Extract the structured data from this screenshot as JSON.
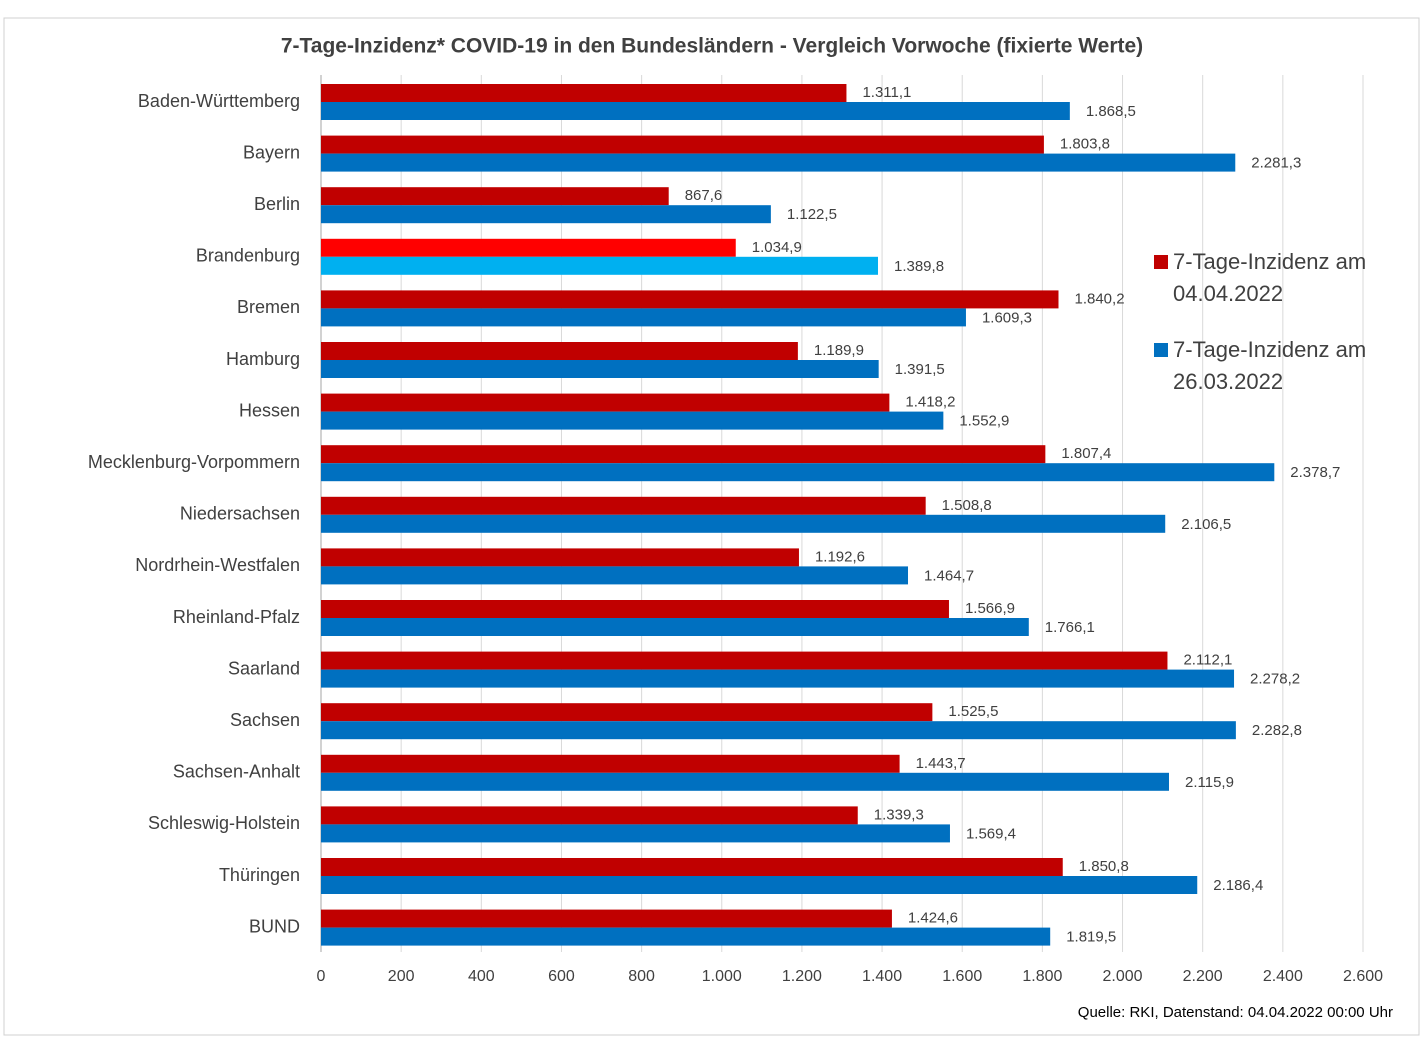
{
  "chart_data": {
    "type": "hbar",
    "title": "7-Tage-Inzidenz* COVID-19 in den Bundesländern - Vergleich Vorwoche (fixierte Werte)",
    "source": "Quelle: RKI, Datenstand: 04.04.2022 00:00 Uhr",
    "categories": [
      "Baden-Württemberg",
      "Bayern",
      "Berlin",
      "Brandenburg",
      "Bremen",
      "Hamburg",
      "Hessen",
      "Mecklenburg-Vorpommern",
      "Niedersachsen",
      "Nordrhein-Westfalen",
      "Rheinland-Pfalz",
      "Saarland",
      "Sachsen",
      "Sachsen-Anhalt",
      "Schleswig-Holstein",
      "Thüringen",
      "BUND"
    ],
    "series": [
      {
        "name": "7-Tage-Inzidenz am 04.04.2022",
        "color": "#c00000",
        "colors": [
          "#c00000",
          "#c00000",
          "#c00000",
          "#ff0000",
          "#c00000",
          "#c00000",
          "#c00000",
          "#c00000",
          "#c00000",
          "#c00000",
          "#c00000",
          "#c00000",
          "#c00000",
          "#c00000",
          "#c00000",
          "#c00000",
          "#c00000"
        ],
        "values": [
          1311.1,
          1803.8,
          867.6,
          1034.9,
          1840.2,
          1189.9,
          1418.2,
          1807.4,
          1508.8,
          1192.6,
          1566.9,
          2112.1,
          1525.5,
          1443.7,
          1339.3,
          1850.8,
          1424.6
        ],
        "value_labels": [
          "1.311,1",
          "1.803,8",
          "867,6",
          "1.034,9",
          "1.840,2",
          "1.189,9",
          "1.418,2",
          "1.807,4",
          "1.508,8",
          "1.192,6",
          "1.566,9",
          "2.112,1",
          "1.525,5",
          "1.443,7",
          "1.339,3",
          "1.850,8",
          "1.424,6"
        ]
      },
      {
        "name": "7-Tage-Inzidenz am 26.03.2022",
        "color": "#0070c0",
        "colors": [
          "#0070c0",
          "#0070c0",
          "#0070c0",
          "#00b0f0",
          "#0070c0",
          "#0070c0",
          "#0070c0",
          "#0070c0",
          "#0070c0",
          "#0070c0",
          "#0070c0",
          "#0070c0",
          "#0070c0",
          "#0070c0",
          "#0070c0",
          "#0070c0",
          "#0070c0"
        ],
        "values": [
          1868.5,
          2281.3,
          1122.5,
          1389.8,
          1609.3,
          1391.5,
          1552.9,
          2378.7,
          2106.5,
          1464.7,
          1766.1,
          2278.2,
          2282.8,
          2115.9,
          1569.4,
          2186.4,
          1819.5
        ],
        "value_labels": [
          "1.868,5",
          "2.281,3",
          "1.122,5",
          "1.389,8",
          "1.609,3",
          "1.391,5",
          "1.552,9",
          "2.378,7",
          "2.106,5",
          "1.464,7",
          "1.766,1",
          "2.278,2",
          "2.282,8",
          "2.115,9",
          "1.569,4",
          "2.186,4",
          "1.819,5"
        ]
      }
    ],
    "xlim": [
      0,
      2600
    ],
    "xticks": [
      0,
      200,
      400,
      600,
      800,
      {
        "value": 1000,
        "label": "1.000"
      },
      {
        "value": 1200,
        "label": "1.200"
      },
      {
        "value": 1400,
        "label": "1.400"
      },
      {
        "value": 1600,
        "label": "1.600"
      },
      {
        "value": 1800,
        "label": "1.800"
      },
      {
        "value": 2000,
        "label": "2.000"
      },
      {
        "value": 2200,
        "label": "2.200"
      },
      {
        "value": 2400,
        "label": "2.400"
      },
      {
        "value": 2600,
        "label": "2.600"
      }
    ],
    "grid": true,
    "legend": "right"
  }
}
